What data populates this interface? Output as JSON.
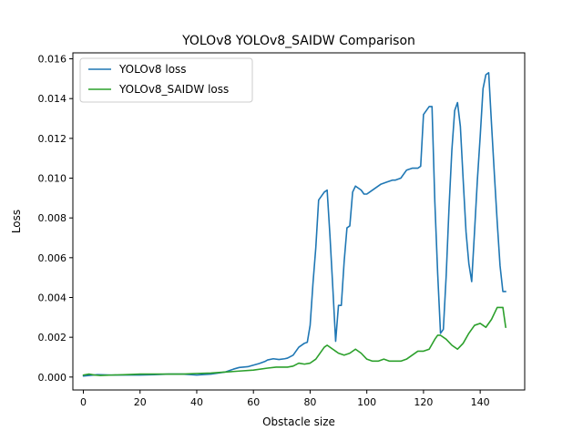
{
  "chart_data": {
    "type": "line",
    "title": "YOLOv8  YOLOv8_SAIDW  Comparison",
    "xlabel": "Obstacle size",
    "ylabel": "Loss",
    "xlim": [
      -3.7,
      155.7
    ],
    "ylim": [
      -0.00065,
      0.0163
    ],
    "xticks": [
      0,
      20,
      40,
      60,
      80,
      100,
      120,
      140
    ],
    "xtick_labels": [
      "0",
      "20",
      "40",
      "60",
      "80",
      "100",
      "120",
      "140"
    ],
    "yticks": [
      0.0,
      0.002,
      0.004,
      0.006,
      0.008,
      0.01,
      0.012,
      0.014,
      0.016
    ],
    "ytick_labels": [
      "0.000",
      "0.002",
      "0.004",
      "0.006",
      "0.008",
      "0.010",
      "0.012",
      "0.014",
      "0.016"
    ],
    "grid": false,
    "legend_position": "upper left",
    "series": [
      {
        "name": "YOLOv8 loss",
        "color": "#1f77b4",
        "x": [
          0,
          5,
          10,
          15,
          20,
          25,
          30,
          35,
          40,
          45,
          50,
          53,
          55,
          58,
          60,
          62,
          64,
          65,
          67,
          69,
          71,
          72,
          74,
          75,
          76,
          78,
          79,
          80,
          81,
          82,
          83,
          85,
          86,
          87,
          88,
          89,
          90,
          91,
          92,
          93,
          94,
          95,
          96,
          98,
          99,
          100,
          101,
          103,
          105,
          107,
          109,
          110,
          112,
          114,
          116,
          118,
          119,
          120,
          121,
          122,
          123,
          124,
          125,
          126,
          127,
          128,
          129,
          130,
          131,
          132,
          133,
          134,
          135,
          136,
          137,
          138,
          139,
          140,
          141,
          142,
          143,
          144,
          145,
          146,
          147,
          148,
          149
        ],
        "values": [
          5e-05,
          0.00012,
          0.0001,
          0.0001,
          0.0001,
          0.00012,
          0.00015,
          0.00015,
          0.0001,
          0.00015,
          0.00025,
          0.0004,
          0.00048,
          0.00052,
          0.0006,
          0.00068,
          0.00078,
          0.00086,
          0.00092,
          0.00088,
          0.00092,
          0.00095,
          0.0011,
          0.0013,
          0.0015,
          0.0017,
          0.00175,
          0.0026,
          0.0047,
          0.0065,
          0.0089,
          0.0093,
          0.0094,
          0.0071,
          0.0045,
          0.0018,
          0.0036,
          0.0036,
          0.0058,
          0.0075,
          0.0076,
          0.0093,
          0.0096,
          0.0094,
          0.0092,
          0.0092,
          0.0093,
          0.0095,
          0.0097,
          0.0098,
          0.0099,
          0.0099,
          0.01,
          0.0104,
          0.0105,
          0.0105,
          0.0106,
          0.0132,
          0.0134,
          0.0136,
          0.0136,
          0.0088,
          0.0052,
          0.0022,
          0.0024,
          0.0051,
          0.0085,
          0.0114,
          0.0134,
          0.0138,
          0.0126,
          0.0099,
          0.0073,
          0.0057,
          0.0048,
          0.0073,
          0.0099,
          0.0121,
          0.0145,
          0.0152,
          0.0153,
          0.0127,
          0.0102,
          0.0078,
          0.0056,
          0.0043,
          0.0043
        ],
        "x_note": "",
        "values_note": ""
      },
      {
        "name": "YOLOv8_SAIDW loss",
        "color": "#2ca02c",
        "x": [
          0,
          2,
          4,
          6,
          10,
          15,
          20,
          25,
          30,
          35,
          40,
          45,
          50,
          55,
          60,
          65,
          68,
          70,
          72,
          74,
          76,
          78,
          80,
          82,
          84,
          85,
          86,
          88,
          89,
          90,
          92,
          94,
          96,
          98,
          100,
          102,
          104,
          106,
          108,
          110,
          112,
          114,
          116,
          118,
          120,
          122,
          124,
          125,
          126,
          128,
          130,
          132,
          134,
          136,
          138,
          140,
          141,
          142,
          144,
          145,
          146,
          147,
          148,
          149
        ],
        "values": [
          0.0001,
          0.00015,
          0.0001,
          8e-05,
          0.0001,
          0.00012,
          0.00015,
          0.00015,
          0.00015,
          0.00015,
          0.00018,
          0.0002,
          0.00025,
          0.0003,
          0.00035,
          0.00045,
          0.0005,
          0.0005,
          0.0005,
          0.00055,
          0.0007,
          0.00065,
          0.0007,
          0.0009,
          0.0013,
          0.0015,
          0.0016,
          0.0014,
          0.0013,
          0.0012,
          0.0011,
          0.0012,
          0.0014,
          0.0012,
          0.0009,
          0.0008,
          0.0008,
          0.0009,
          0.0008,
          0.0008,
          0.0008,
          0.0009,
          0.0011,
          0.0013,
          0.0013,
          0.0014,
          0.0019,
          0.0021,
          0.0021,
          0.0019,
          0.0016,
          0.0014,
          0.0017,
          0.0022,
          0.0026,
          0.0027,
          0.0026,
          0.0025,
          0.0029,
          0.0032,
          0.0035,
          0.0035,
          0.0035,
          0.0025
        ],
        "x_note": "",
        "values_note": ""
      }
    ]
  }
}
